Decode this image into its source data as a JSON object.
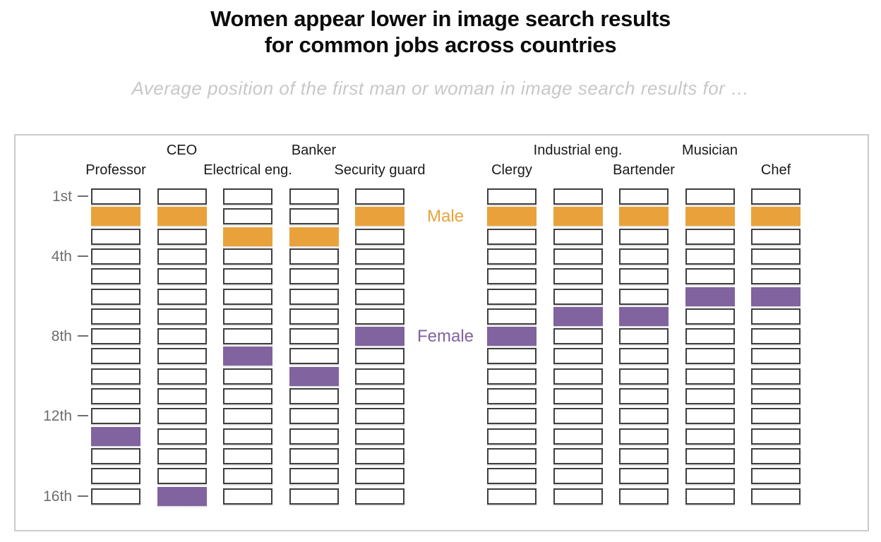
{
  "title": {
    "line1": "Women appear lower in image search results",
    "line2": "for common jobs across countries"
  },
  "subtitle": "Average position of the first man or woman in image search results for …",
  "legend": {
    "male": "Male",
    "female": "Female"
  },
  "colors": {
    "male": "#E9A23B",
    "female": "#80639F",
    "box_border": "#3E3E3E",
    "tick_text": "#6E6E6E",
    "header_text": "#1A1A1A",
    "panel_border": "#CBCBCB",
    "subtitle_text": "#C7C7C7",
    "title_text": "#0B0B0B"
  },
  "chart_data": {
    "type": "scatter",
    "subtype": "rank-position-grid",
    "title": "Women appear lower in image search results for common jobs across countries",
    "rows": 16,
    "y_inverted": true,
    "ylim": [
      1,
      16
    ],
    "xlabel": "",
    "ylabel": "",
    "grid": false,
    "legend_position": "between-column-groups",
    "group_split_after": 5,
    "categories": [
      "Professor",
      "CEO",
      "Electrical eng.",
      "Banker",
      "Security guard",
      "Clergy",
      "Industrial eng.",
      "Bartender",
      "Musician",
      "Chef"
    ],
    "series": [
      {
        "name": "Male",
        "color": "#E9A23B",
        "values": [
          2,
          2,
          3,
          3,
          2,
          2,
          2,
          2,
          2,
          2
        ]
      },
      {
        "name": "Female",
        "color": "#80639F",
        "values": [
          13,
          16,
          9,
          10,
          8,
          8,
          7,
          7,
          6,
          6
        ]
      }
    ],
    "yticks": [
      {
        "label": "1st",
        "position": 1
      },
      {
        "label": "4th",
        "position": 4
      },
      {
        "label": "8th",
        "position": 8
      },
      {
        "label": "12th",
        "position": 12
      },
      {
        "label": "16th",
        "position": 16
      }
    ]
  }
}
